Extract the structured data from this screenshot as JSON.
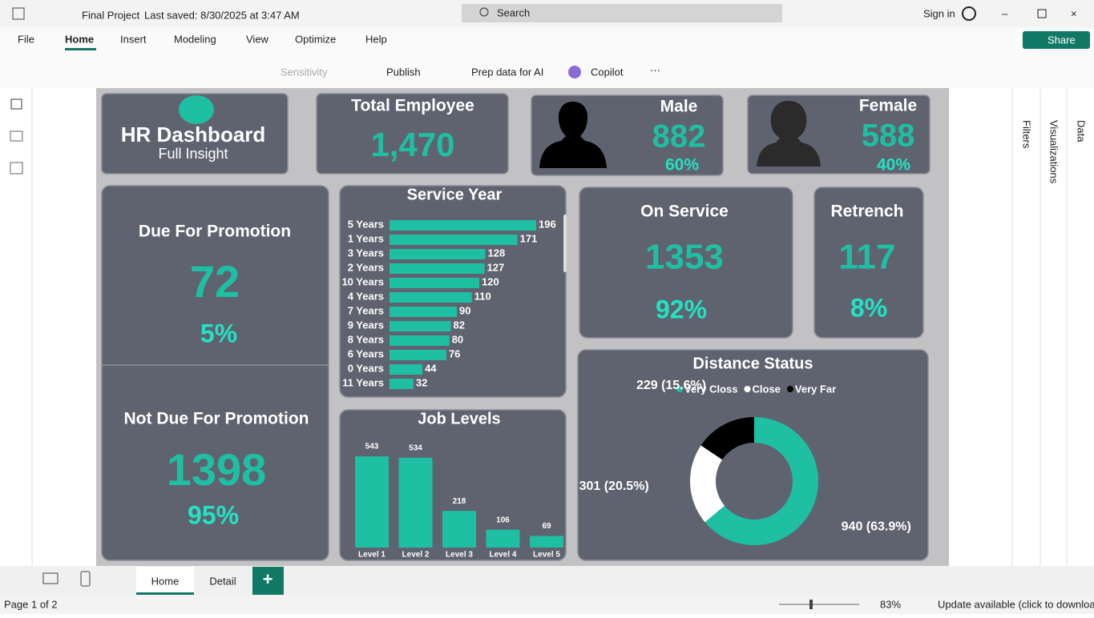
{
  "titlebar": {
    "file": "Final Project",
    "saved": "Last saved: 8/30/2025 at 3:47 AM",
    "search": "Search",
    "sign_in": "Sign in"
  },
  "menu": [
    "File",
    "Home",
    "Insert",
    "Modeling",
    "View",
    "Optimize",
    "Help"
  ],
  "share": "Share",
  "ribbon": [
    "Sensitivity",
    "Publish",
    "Prep data for AI",
    "Copilot"
  ],
  "panes": [
    "Filters",
    "Visualizations",
    "Data"
  ],
  "report": {
    "title": "HR Dashboard",
    "subtitle": "Full Insight",
    "total": {
      "label": "Total Employee",
      "value": "1,470"
    },
    "male": {
      "label": "Male",
      "value": "882",
      "percent": "60%"
    },
    "female": {
      "label": "Female",
      "value": "588",
      "percent": "40%"
    },
    "due": {
      "label": "Due For Promotion",
      "value": "72",
      "percent": "5%"
    },
    "not_due": {
      "label": "Not Due For Promotion",
      "value": "1398",
      "percent": "95%"
    },
    "on_service": {
      "label": "On Service",
      "value": "1353",
      "percent": "92%"
    },
    "retrench": {
      "label": "Retrench",
      "value": "117",
      "percent": "8%"
    }
  },
  "chart_data": [
    {
      "type": "bar",
      "orientation": "horizontal",
      "title": "Service Year",
      "categories": [
        "5 Years",
        "1 Years",
        "3 Years",
        "2 Years",
        "10 Years",
        "4 Years",
        "7 Years",
        "9 Years",
        "8 Years",
        "6 Years",
        "0 Years",
        "11 Years"
      ],
      "values": [
        196,
        171,
        128,
        127,
        120,
        110,
        90,
        82,
        80,
        76,
        44,
        32
      ],
      "color": "#1fbfa3"
    },
    {
      "type": "bar",
      "orientation": "vertical",
      "title": "Job Levels",
      "categories": [
        "Level 1",
        "Level 2",
        "Level 3",
        "Level 4",
        "Level 5"
      ],
      "values": [
        543,
        534,
        218,
        106,
        69
      ],
      "color": "#1fbfa3"
    },
    {
      "type": "pie",
      "donut": true,
      "title": "Distance Status",
      "legend": "top",
      "categories": [
        "Very Closs",
        "Close",
        "Very Far"
      ],
      "values": [
        940,
        301,
        229
      ],
      "value_labels": [
        "940 (63.9%)",
        "301 (20.5%)",
        "229 (15.6%)"
      ],
      "colors": [
        "#1fbfa3",
        "#ffffff",
        "#000000"
      ]
    }
  ],
  "page_tabs": [
    "Home",
    "Detail"
  ],
  "status": {
    "page": "Page 1 of 2",
    "zoom": "83%",
    "update": "Update available (click to download)"
  }
}
